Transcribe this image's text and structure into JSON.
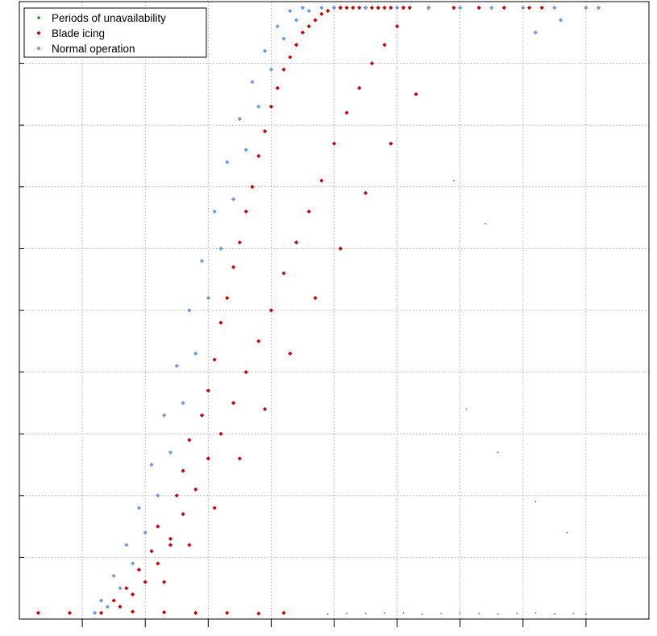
{
  "chart_data": {
    "type": "scatter",
    "title": "",
    "xlabel": "",
    "ylabel": "",
    "xlim": [
      0,
      10
    ],
    "ylim": [
      0,
      10
    ],
    "xticks": [
      1,
      2,
      3,
      4,
      5,
      6,
      7,
      8,
      9
    ],
    "yticks": [
      1,
      2,
      3,
      4,
      5,
      6,
      7,
      8,
      9
    ],
    "tick_labels_shown": false,
    "grid": true,
    "legend_position": "top-left",
    "series": [
      {
        "name": "Periods of unavailability",
        "color": "#1f8a1f",
        "marker": "point",
        "x": [
          4.9,
          5.2,
          5.5,
          5.8,
          6.1,
          6.4,
          6.7,
          7.0,
          7.3,
          7.6,
          7.9,
          8.2,
          8.5,
          8.8,
          9.0,
          7.1,
          7.6,
          8.2,
          8.7,
          6.9,
          7.4
        ],
        "y": [
          0.08,
          0.09,
          0.09,
          0.1,
          0.1,
          0.08,
          0.09,
          0.1,
          0.09,
          0.08,
          0.09,
          0.1,
          0.08,
          0.09,
          0.08,
          3.4,
          2.7,
          1.9,
          1.4,
          7.1,
          6.4
        ]
      },
      {
        "name": "Blade icing",
        "color": "#cc0000",
        "marker": "diamond",
        "x": [
          0.3,
          0.8,
          1.3,
          1.8,
          2.3,
          2.8,
          3.3,
          3.8,
          4.2,
          1.5,
          1.7,
          1.9,
          2.1,
          2.2,
          2.4,
          2.5,
          2.6,
          2.7,
          2.9,
          3.0,
          3.1,
          3.2,
          3.3,
          3.4,
          3.5,
          3.6,
          3.7,
          3.8,
          3.9,
          4.0,
          4.1,
          4.2,
          4.3,
          4.4,
          4.5,
          4.6,
          4.7,
          4.8,
          4.9,
          5.0,
          5.1,
          5.2,
          5.3,
          5.4,
          5.5,
          5.6,
          5.7,
          5.8,
          5.9,
          6.0,
          6.1,
          6.2,
          6.5,
          6.9,
          7.3,
          7.7,
          8.1,
          8.3,
          1.6,
          1.8,
          2.0,
          2.2,
          2.4,
          2.6,
          2.8,
          3.0,
          3.2,
          3.4,
          3.6,
          3.8,
          4.0,
          4.2,
          4.4,
          4.6,
          4.8,
          5.0,
          5.2,
          5.4,
          5.6,
          5.8,
          6.0,
          2.3,
          2.7,
          3.1,
          3.5,
          3.9,
          4.3,
          4.7,
          5.1,
          5.5,
          5.9,
          6.3
        ],
        "y": [
          0.1,
          0.1,
          0.1,
          0.12,
          0.11,
          0.1,
          0.1,
          0.09,
          0.1,
          0.3,
          0.5,
          0.8,
          1.1,
          1.5,
          1.2,
          2.0,
          2.4,
          2.9,
          3.3,
          3.7,
          4.2,
          4.8,
          5.2,
          5.7,
          6.1,
          6.6,
          7.0,
          7.5,
          7.9,
          8.3,
          8.6,
          8.9,
          9.1,
          9.3,
          9.5,
          9.6,
          9.7,
          9.8,
          9.85,
          9.9,
          9.9,
          9.9,
          9.9,
          9.9,
          9.9,
          9.9,
          9.9,
          9.9,
          9.9,
          9.9,
          9.9,
          9.9,
          9.9,
          9.9,
          9.9,
          9.9,
          9.9,
          9.9,
          0.2,
          0.4,
          0.6,
          0.9,
          1.3,
          1.7,
          2.1,
          2.6,
          3.0,
          3.5,
          4.0,
          4.5,
          5.0,
          5.6,
          6.1,
          6.6,
          7.1,
          7.7,
          8.2,
          8.6,
          9.0,
          9.3,
          9.6,
          0.6,
          1.2,
          1.8,
          2.6,
          3.4,
          4.3,
          5.2,
          6.0,
          6.9,
          7.7,
          8.5
        ]
      },
      {
        "name": "Normal operation",
        "color": "#6699ee",
        "marker": "diamond",
        "x": [
          1.2,
          1.4,
          1.6,
          1.8,
          2.0,
          2.2,
          2.4,
          2.6,
          2.8,
          3.0,
          3.2,
          3.4,
          3.6,
          3.8,
          4.0,
          4.2,
          4.4,
          4.6,
          4.8,
          5.0,
          5.5,
          6.0,
          6.5,
          7.0,
          7.5,
          8.0,
          8.5,
          9.0,
          9.2,
          8.6,
          8.2,
          1.3,
          1.5,
          1.7,
          1.9,
          2.1,
          2.3,
          2.5,
          2.7,
          2.9,
          3.1,
          3.3,
          3.5,
          3.7,
          3.9,
          4.1,
          4.3,
          4.5
        ],
        "y": [
          0.1,
          0.2,
          0.5,
          0.9,
          1.4,
          2.0,
          2.7,
          3.5,
          4.3,
          5.2,
          6.0,
          6.8,
          7.6,
          8.3,
          8.9,
          9.4,
          9.7,
          9.85,
          9.9,
          9.9,
          9.9,
          9.9,
          9.9,
          9.9,
          9.9,
          9.9,
          9.9,
          9.9,
          9.9,
          9.7,
          9.5,
          0.3,
          0.7,
          1.2,
          1.8,
          2.5,
          3.3,
          4.1,
          5.0,
          5.8,
          6.6,
          7.4,
          8.1,
          8.7,
          9.2,
          9.6,
          9.85,
          9.9
        ]
      }
    ]
  }
}
